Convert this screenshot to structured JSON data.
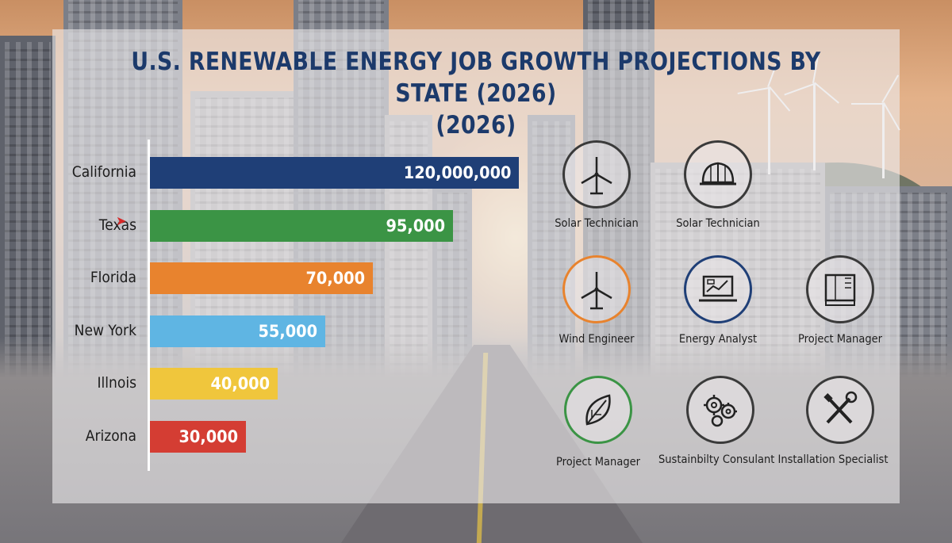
{
  "title": {
    "line1": "U.S. RENEWABLE ENERGY  JOB GROWTH PROJECTIONS BY STATE (2026)",
    "line2": "(2026)"
  },
  "chart_data": {
    "type": "bar",
    "orientation": "horizontal",
    "title": "U.S. RENEWABLE ENERGY  JOB GROWTH PROJECTIONS BY STATE (2026) (2026)",
    "categories": [
      "California",
      "Texas",
      "Florida",
      "New York",
      "Illnois",
      "Arizona"
    ],
    "values": [
      120000000,
      95000,
      70000,
      55000,
      40000,
      30000
    ],
    "value_labels": [
      "120,000,000",
      "95,000",
      "70,000",
      "55,000",
      "40,000",
      "30,000"
    ],
    "colors": [
      "#1f3f77",
      "#3b9445",
      "#e8832e",
      "#5fb5e3",
      "#f0c63c",
      "#d43d33"
    ],
    "grid": false,
    "legend": "none"
  },
  "roles": [
    {
      "label": "Solar Technician",
      "icon": "wind-turbine-icon",
      "ring": "#3a3a3a"
    },
    {
      "label": "Solar Technician",
      "icon": "hard-hat-icon",
      "ring": "#3a3a3a"
    },
    {
      "label": "Wind Engineer",
      "icon": "wind-turbine-icon",
      "ring": "#e8832e"
    },
    {
      "label": "Energy Analyst",
      "icon": "laptop-chart-icon",
      "ring": "#1f3f77"
    },
    {
      "label": "Project Manager",
      "icon": "blueprint-icon",
      "ring": "#3a3a3a"
    },
    {
      "label": "Project Manager",
      "icon": "leaf-icon",
      "ring": "#3b9445"
    },
    {
      "label": "Sustainbilty Consulant Installation Specialist",
      "icon": "gears-icon",
      "ring": "#3a3a3a"
    },
    {
      "label": "",
      "icon": "tools-icon",
      "ring": "#3a3a3a"
    }
  ]
}
